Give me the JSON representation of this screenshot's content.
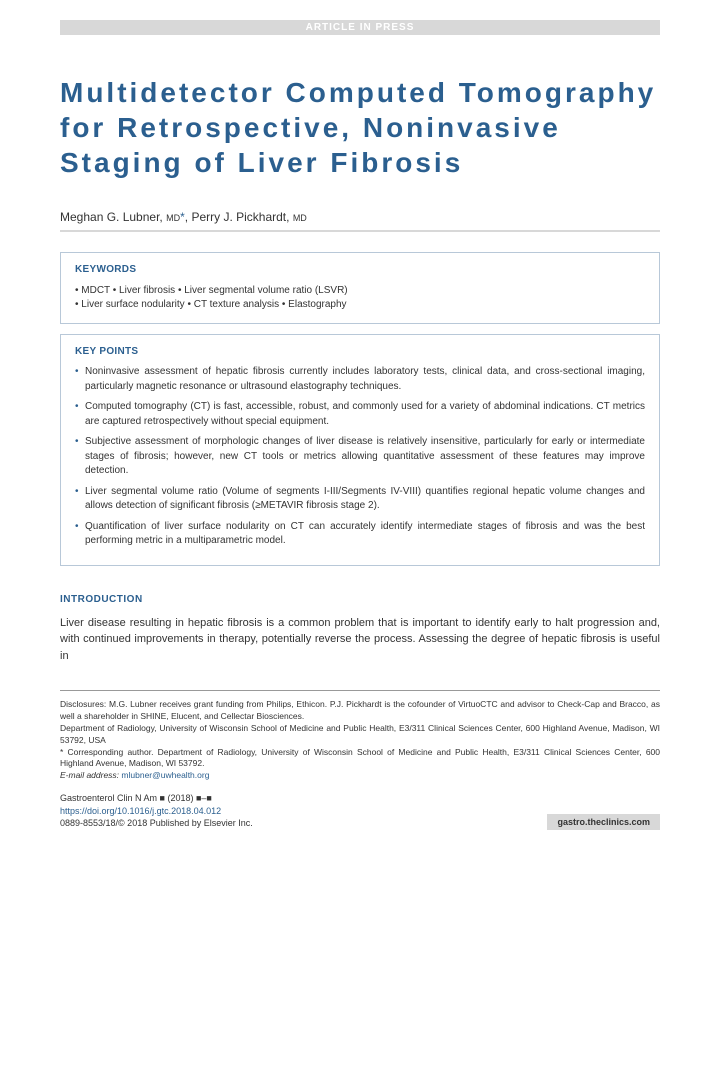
{
  "banner": "ARTICLE IN PRESS",
  "title": "Multidetector Computed Tomography for Retrospective, Noninvasive Staging of Liver Fibrosis",
  "authors": {
    "a1_name": "Meghan G. Lubner,",
    "a1_deg": "MD",
    "a1_star": "*",
    "sep": ", ",
    "a2_name": "Perry J. Pickhardt,",
    "a2_deg": "MD"
  },
  "keywords": {
    "heading": "KEYWORDS",
    "line1": "• MDCT • Liver fibrosis • Liver segmental volume ratio (LSVR)",
    "line2": "• Liver surface nodularity • CT texture analysis • Elastography"
  },
  "keypoints": {
    "heading": "KEY POINTS",
    "items": [
      "Noninvasive assessment of hepatic fibrosis currently includes laboratory tests, clinical data, and cross-sectional imaging, particularly magnetic resonance or ultrasound elastography techniques.",
      "Computed tomography (CT) is fast, accessible, robust, and commonly used for a variety of abdominal indications. CT metrics are captured retrospectively without special equipment.",
      "Subjective assessment of morphologic changes of liver disease is relatively insensitive, particularly for early or intermediate stages of fibrosis; however, new CT tools or metrics allowing quantitative assessment of these features may improve detection.",
      "Liver segmental volume ratio (Volume of segments I-III/Segments IV-VIII) quantifies regional hepatic volume changes and allows detection of significant fibrosis (≥METAVIR fibrosis stage 2).",
      "Quantification of liver surface nodularity on CT can accurately identify intermediate stages of fibrosis and was the best performing metric in a multiparametric model."
    ]
  },
  "intro": {
    "heading": "INTRODUCTION",
    "text": "Liver disease resulting in hepatic fibrosis is a common problem that is important to identify early to halt progression and, with continued improvements in therapy, potentially reverse the process. Assessing the degree of hepatic fibrosis is useful in"
  },
  "footnotes": {
    "disclosures": "Disclosures: M.G. Lubner receives grant funding from Philips, Ethicon. P.J. Pickhardt is the cofounder of VirtuoCTC and advisor to Check-Cap and Bracco, as well a shareholder in SHINE, Elucent, and Cellectar Biosciences.",
    "affiliation": "Department of Radiology, University of Wisconsin School of Medicine and Public Health, E3/311 Clinical Sciences Center, 600 Highland Avenue, Madison, WI 53792, USA",
    "corresponding": "* Corresponding author. Department of Radiology, University of Wisconsin School of Medicine and Public Health, E3/311 Clinical Sciences Center, 600 Highland Avenue, Madison, WI 53792.",
    "email_label": "E-mail address: ",
    "email": "mlubner@uwhealth.org"
  },
  "journal": {
    "line1": "Gastroenterol Clin N Am ■ (2018) ■–■",
    "doi": "https://doi.org/10.1016/j.gtc.2018.04.012",
    "line3": "0889-8553/18/© 2018 Published by Elsevier Inc.",
    "site": "gastro.theclinics.com"
  },
  "colors": {
    "primary": "#2b5f8f",
    "banner_bg": "#d8d8d8",
    "box_border": "#b8c8d8"
  }
}
